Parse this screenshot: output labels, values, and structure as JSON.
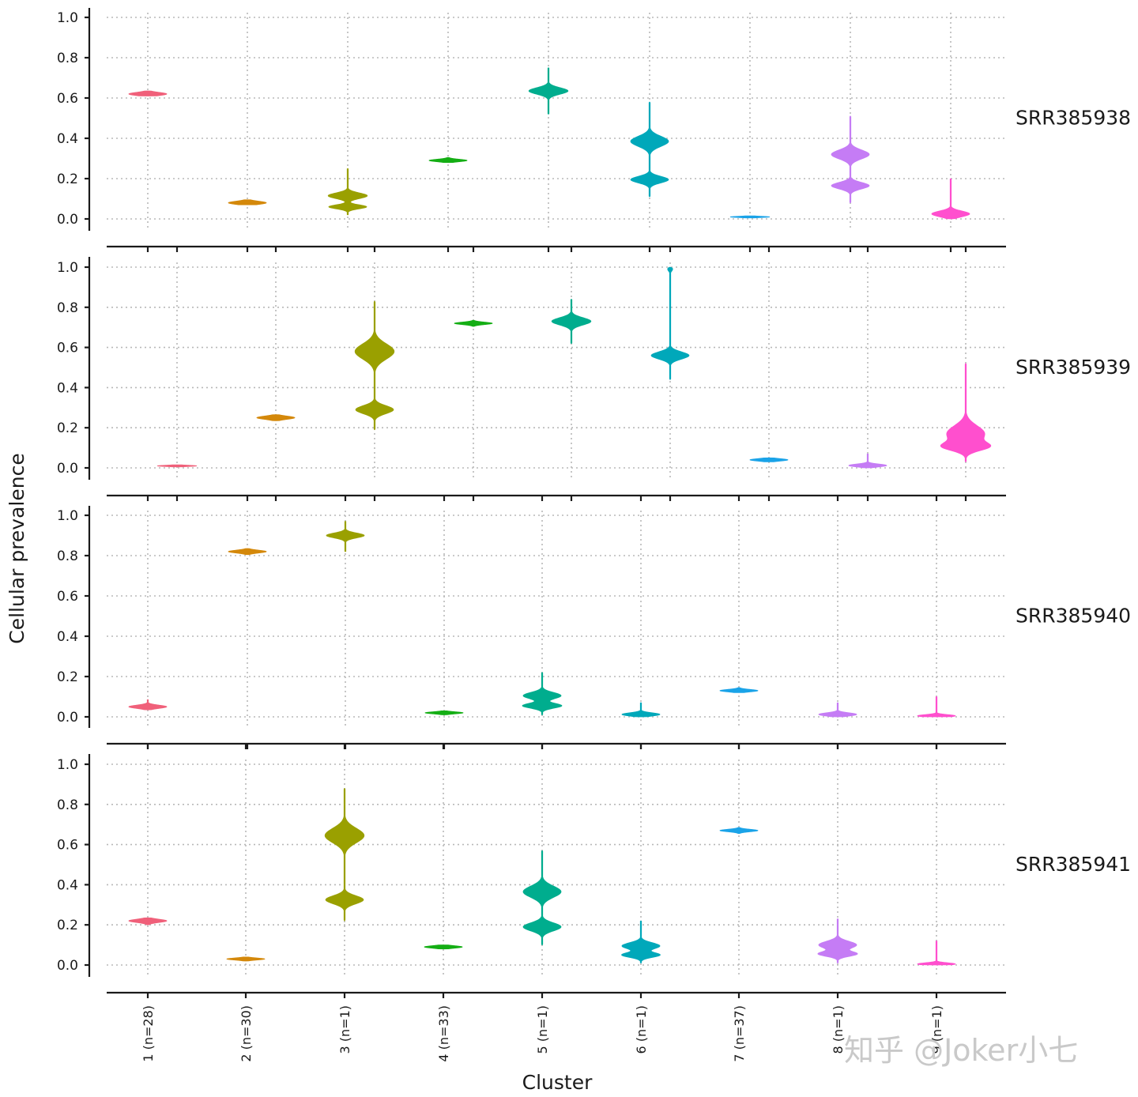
{
  "chart_data": {
    "type": "violin",
    "xlabel": "Cluster",
    "ylabel": "Cellular prevalence",
    "ylim": [
      0,
      1.0
    ],
    "yticks": [
      "0.0",
      "0.2",
      "0.4",
      "0.6",
      "0.8",
      "1.0"
    ],
    "categories": [
      "1 (n=28)",
      "2 (n=30)",
      "3 (n=1)",
      "4 (n=33)",
      "5 (n=1)",
      "6 (n=1)",
      "7 (n=37)",
      "8 (n=1)",
      "9 (n=1)"
    ],
    "colors": [
      "#f8766d",
      "#d39200",
      "#93aa00",
      "#00ba38",
      "#00c19f",
      "#00b9e3",
      "#619cff",
      "#db72fb",
      "#ff61c3"
    ],
    "palette": [
      "#f0607a",
      "#d4880a",
      "#9aa000",
      "#14ae14",
      "#00ad8e",
      "#00a8ba",
      "#1aa3e8",
      "#c57cf5",
      "#ff4fce"
    ],
    "samples": [
      {
        "name": "SRR385938",
        "violins": [
          {
            "cluster": 1,
            "modes": [
              {
                "center": 0.62,
                "width": 0.6,
                "spread": 0.008
              }
            ],
            "min": 0.61,
            "max": 0.635
          },
          {
            "cluster": 2,
            "modes": [
              {
                "center": 0.08,
                "width": 0.6,
                "spread": 0.008
              }
            ],
            "min": 0.07,
            "max": 0.095
          },
          {
            "cluster": 3,
            "modes": [
              {
                "center": 0.115,
                "width": 0.62,
                "spread": 0.014
              },
              {
                "center": 0.06,
                "width": 0.6,
                "spread": 0.01
              }
            ],
            "min": 0.02,
            "max": 0.25
          },
          {
            "cluster": 4,
            "modes": [
              {
                "center": 0.29,
                "width": 0.6,
                "spread": 0.006
              }
            ],
            "min": 0.28,
            "max": 0.305
          },
          {
            "cluster": 5,
            "modes": [
              {
                "center": 0.635,
                "width": 0.62,
                "spread": 0.016
              }
            ],
            "min": 0.52,
            "max": 0.75
          },
          {
            "cluster": 6,
            "modes": [
              {
                "center": 0.385,
                "width": 0.6,
                "spread": 0.025
              },
              {
                "center": 0.195,
                "width": 0.6,
                "spread": 0.016
              }
            ],
            "min": 0.11,
            "max": 0.58
          },
          {
            "cluster": 7,
            "modes": [
              {
                "center": 0.01,
                "width": 0.62,
                "spread": 0.003
              }
            ],
            "min": 0.005,
            "max": 0.015
          },
          {
            "cluster": 8,
            "modes": [
              {
                "center": 0.32,
                "width": 0.6,
                "spread": 0.022
              },
              {
                "center": 0.165,
                "width": 0.6,
                "spread": 0.016
              }
            ],
            "min": 0.08,
            "max": 0.51
          },
          {
            "cluster": 9,
            "modes": [
              {
                "center": 0.025,
                "width": 0.6,
                "spread": 0.014
              }
            ],
            "min": 0.0,
            "max": 0.2
          }
        ]
      },
      {
        "name": "SRR385939",
        "violins": [
          {
            "cluster": 1,
            "modes": [
              {
                "center": 0.01,
                "width": 0.62,
                "spread": 0.003
              }
            ],
            "min": 0.005,
            "max": 0.015
          },
          {
            "cluster": 2,
            "modes": [
              {
                "center": 0.25,
                "width": 0.6,
                "spread": 0.008
              }
            ],
            "min": 0.235,
            "max": 0.265
          },
          {
            "cluster": 3,
            "modes": [
              {
                "center": 0.58,
                "width": 0.62,
                "spread": 0.038
              },
              {
                "center": 0.29,
                "width": 0.6,
                "spread": 0.02
              }
            ],
            "min": 0.19,
            "max": 0.83
          },
          {
            "cluster": 4,
            "modes": [
              {
                "center": 0.72,
                "width": 0.6,
                "spread": 0.006
              }
            ],
            "min": 0.705,
            "max": 0.735
          },
          {
            "cluster": 5,
            "modes": [
              {
                "center": 0.73,
                "width": 0.62,
                "spread": 0.018
              }
            ],
            "min": 0.62,
            "max": 0.84
          },
          {
            "cluster": 6,
            "modes": [
              {
                "center": 0.56,
                "width": 0.6,
                "spread": 0.018
              },
              {
                "center": 0.99,
                "width": 0.08,
                "spread": 0.01
              }
            ],
            "min": 0.44,
            "max": 1.0
          },
          {
            "cluster": 7,
            "modes": [
              {
                "center": 0.04,
                "width": 0.6,
                "spread": 0.006
              }
            ],
            "min": 0.03,
            "max": 0.05
          },
          {
            "cluster": 8,
            "modes": [
              {
                "center": 0.012,
                "width": 0.6,
                "spread": 0.007
              }
            ],
            "min": 0.0,
            "max": 0.07
          },
          {
            "cluster": 9,
            "modes": [
              {
                "center": 0.17,
                "width": 0.6,
                "spread": 0.04
              },
              {
                "center": 0.105,
                "width": 0.62,
                "spread": 0.02
              }
            ],
            "min": 0.03,
            "max": 0.52
          }
        ]
      },
      {
        "name": "SRR385940",
        "violins": [
          {
            "cluster": 1,
            "modes": [
              {
                "center": 0.05,
                "width": 0.6,
                "spread": 0.008
              }
            ],
            "min": 0.035,
            "max": 0.085
          },
          {
            "cluster": 2,
            "modes": [
              {
                "center": 0.82,
                "width": 0.6,
                "spread": 0.007
              }
            ],
            "min": 0.805,
            "max": 0.835
          },
          {
            "cluster": 3,
            "modes": [
              {
                "center": 0.9,
                "width": 0.6,
                "spread": 0.012
              }
            ],
            "min": 0.82,
            "max": 0.97
          },
          {
            "cluster": 4,
            "modes": [
              {
                "center": 0.02,
                "width": 0.6,
                "spread": 0.005
              }
            ],
            "min": 0.01,
            "max": 0.03
          },
          {
            "cluster": 5,
            "modes": [
              {
                "center": 0.105,
                "width": 0.6,
                "spread": 0.016
              },
              {
                "center": 0.055,
                "width": 0.62,
                "spread": 0.012
              }
            ],
            "min": 0.01,
            "max": 0.22
          },
          {
            "cluster": 6,
            "modes": [
              {
                "center": 0.012,
                "width": 0.6,
                "spread": 0.008
              }
            ],
            "min": 0.0,
            "max": 0.07
          },
          {
            "cluster": 7,
            "modes": [
              {
                "center": 0.13,
                "width": 0.6,
                "spread": 0.006
              }
            ],
            "min": 0.12,
            "max": 0.145
          },
          {
            "cluster": 8,
            "modes": [
              {
                "center": 0.012,
                "width": 0.6,
                "spread": 0.008
              }
            ],
            "min": 0.0,
            "max": 0.07
          },
          {
            "cluster": 9,
            "modes": [
              {
                "center": 0.005,
                "width": 0.6,
                "spread": 0.006
              }
            ],
            "min": 0.0,
            "max": 0.1
          }
        ]
      },
      {
        "name": "SRR385941",
        "violins": [
          {
            "cluster": 1,
            "modes": [
              {
                "center": 0.22,
                "width": 0.6,
                "spread": 0.008
              }
            ],
            "min": 0.2,
            "max": 0.235
          },
          {
            "cluster": 2,
            "modes": [
              {
                "center": 0.03,
                "width": 0.6,
                "spread": 0.005
              }
            ],
            "min": 0.02,
            "max": 0.04
          },
          {
            "cluster": 3,
            "modes": [
              {
                "center": 0.645,
                "width": 0.62,
                "spread": 0.036
              },
              {
                "center": 0.325,
                "width": 0.6,
                "spread": 0.02
              }
            ],
            "min": 0.22,
            "max": 0.88
          },
          {
            "cluster": 4,
            "modes": [
              {
                "center": 0.09,
                "width": 0.6,
                "spread": 0.006
              }
            ],
            "min": 0.08,
            "max": 0.1
          },
          {
            "cluster": 5,
            "modes": [
              {
                "center": 0.365,
                "width": 0.6,
                "spread": 0.028
              },
              {
                "center": 0.19,
                "width": 0.6,
                "spread": 0.02
              }
            ],
            "min": 0.1,
            "max": 0.57
          },
          {
            "cluster": 6,
            "modes": [
              {
                "center": 0.095,
                "width": 0.6,
                "spread": 0.016
              },
              {
                "center": 0.05,
                "width": 0.6,
                "spread": 0.012
              }
            ],
            "min": 0.01,
            "max": 0.22
          },
          {
            "cluster": 7,
            "modes": [
              {
                "center": 0.67,
                "width": 0.6,
                "spread": 0.006
              }
            ],
            "min": 0.655,
            "max": 0.685
          },
          {
            "cluster": 8,
            "modes": [
              {
                "center": 0.1,
                "width": 0.6,
                "spread": 0.018
              },
              {
                "center": 0.055,
                "width": 0.6,
                "spread": 0.012
              }
            ],
            "min": 0.01,
            "max": 0.23
          },
          {
            "cluster": 9,
            "modes": [
              {
                "center": 0.005,
                "width": 0.6,
                "spread": 0.006
              }
            ],
            "min": 0.0,
            "max": 0.12
          }
        ]
      }
    ]
  },
  "watermark": "知乎 @Joker小七"
}
